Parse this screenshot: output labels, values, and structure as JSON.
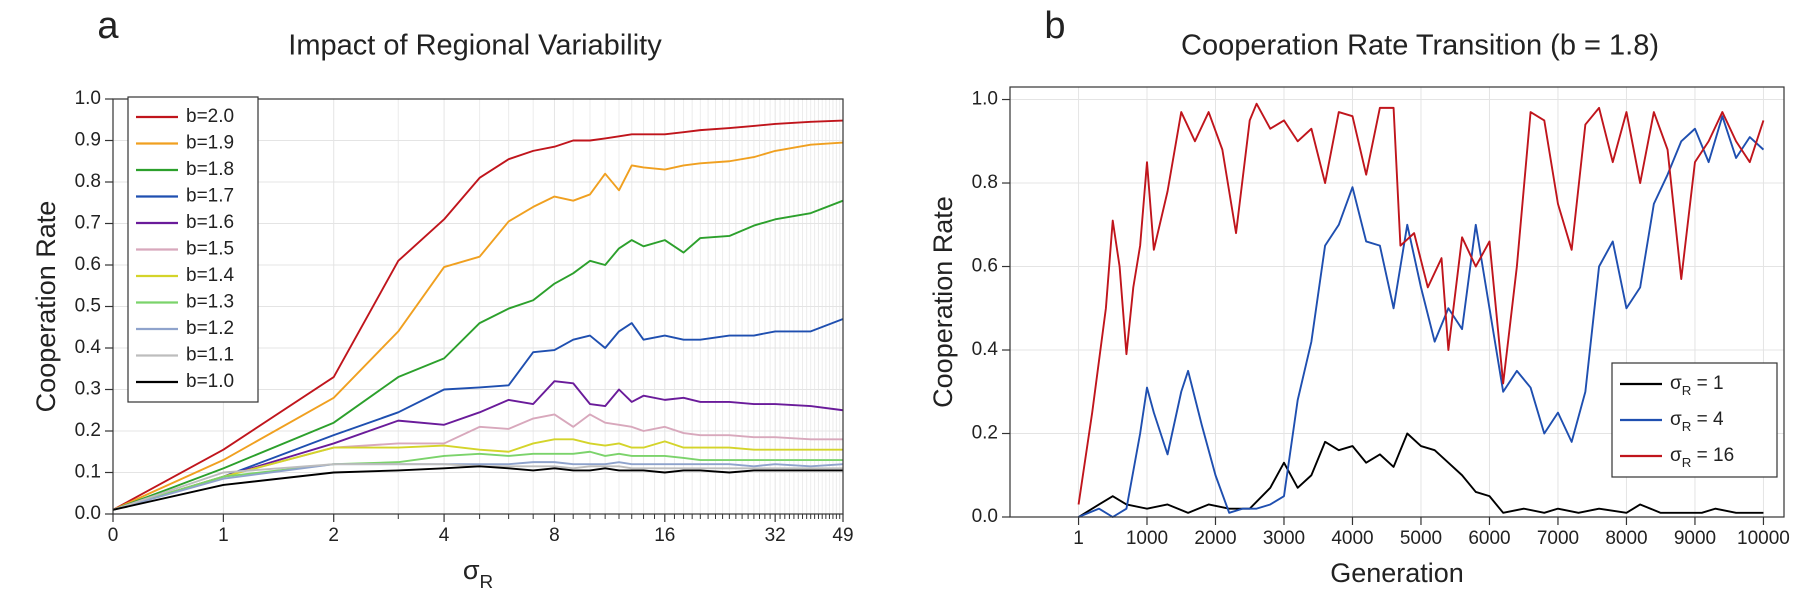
{
  "chart_data": [
    {
      "type": "line",
      "panel_label": "a",
      "title": "Impact of Regional Variability",
      "xlabel": [
        "σ",
        "R"
      ],
      "ylabel": "Cooperation Rate",
      "xscale": "log2",
      "x": [
        0,
        1,
        2,
        3,
        4,
        5,
        6,
        7,
        8,
        9,
        10,
        11,
        12,
        13,
        14,
        16,
        18,
        20,
        24,
        28,
        32,
        40,
        49
      ],
      "xlim": [
        0,
        49
      ],
      "xticks": [
        0,
        1,
        2,
        4,
        8,
        16,
        32,
        49
      ],
      "minor_xticks": [
        3,
        5,
        6,
        7,
        9,
        10,
        11,
        12,
        13,
        14,
        15,
        17,
        18,
        19,
        20,
        21,
        22,
        23,
        24,
        25,
        26,
        27,
        28,
        29,
        30,
        31,
        33,
        34,
        35,
        36,
        37,
        38,
        39,
        40,
        41,
        42,
        43,
        44,
        45,
        46,
        47,
        48
      ],
      "ylim": [
        0,
        1
      ],
      "yticks": [
        {
          "value": 0,
          "label": "0.0"
        },
        {
          "value": 0.1,
          "label": "0.1"
        },
        {
          "value": 0.2,
          "label": "0.2"
        },
        {
          "value": 0.3,
          "label": "0.3"
        },
        {
          "value": 0.4,
          "label": "0.4"
        },
        {
          "value": 0.5,
          "label": "0.5"
        },
        {
          "value": 0.6,
          "label": "0.6"
        },
        {
          "value": 0.7,
          "label": "0.7"
        },
        {
          "value": 0.8,
          "label": "0.8"
        },
        {
          "value": 0.9,
          "label": "0.9"
        },
        {
          "value": 1,
          "label": "1.0"
        }
      ],
      "grid": true,
      "legend": "upper left",
      "series": [
        {
          "name": "b=2.0",
          "color": "#c0151c",
          "values": [
            0.01,
            0.155,
            0.33,
            0.61,
            0.71,
            0.81,
            0.855,
            0.875,
            0.885,
            0.9,
            0.9,
            0.905,
            0.91,
            0.915,
            0.915,
            0.915,
            0.92,
            0.925,
            0.93,
            0.935,
            0.94,
            0.945,
            0.948
          ]
        },
        {
          "name": "b=1.9",
          "color": "#f0a020",
          "values": [
            0.01,
            0.13,
            0.28,
            0.44,
            0.595,
            0.62,
            0.705,
            0.74,
            0.765,
            0.755,
            0.77,
            0.82,
            0.78,
            0.84,
            0.835,
            0.83,
            0.84,
            0.845,
            0.85,
            0.86,
            0.875,
            0.89,
            0.895
          ]
        },
        {
          "name": "b=1.8",
          "color": "#2ca02c",
          "values": [
            0.01,
            0.11,
            0.22,
            0.33,
            0.375,
            0.46,
            0.495,
            0.515,
            0.555,
            0.58,
            0.61,
            0.6,
            0.64,
            0.66,
            0.645,
            0.66,
            0.63,
            0.665,
            0.67,
            0.695,
            0.71,
            0.725,
            0.755
          ]
        },
        {
          "name": "b=1.7",
          "color": "#1f4fb0",
          "values": [
            0.01,
            0.09,
            0.19,
            0.245,
            0.3,
            0.305,
            0.31,
            0.39,
            0.395,
            0.42,
            0.43,
            0.4,
            0.44,
            0.46,
            0.42,
            0.43,
            0.42,
            0.42,
            0.43,
            0.43,
            0.44,
            0.44,
            0.47
          ]
        },
        {
          "name": "b=1.6",
          "color": "#6a1b9a",
          "values": [
            0.01,
            0.09,
            0.17,
            0.225,
            0.215,
            0.245,
            0.275,
            0.265,
            0.32,
            0.315,
            0.265,
            0.26,
            0.3,
            0.27,
            0.285,
            0.275,
            0.28,
            0.27,
            0.27,
            0.265,
            0.265,
            0.26,
            0.25
          ]
        },
        {
          "name": "b=1.5",
          "color": "#d8a8bc",
          "values": [
            0.01,
            0.09,
            0.16,
            0.17,
            0.17,
            0.21,
            0.205,
            0.23,
            0.24,
            0.21,
            0.24,
            0.22,
            0.215,
            0.21,
            0.2,
            0.21,
            0.195,
            0.19,
            0.19,
            0.185,
            0.185,
            0.18,
            0.18
          ]
        },
        {
          "name": "b=1.4",
          "color": "#d4d42a",
          "values": [
            0.01,
            0.09,
            0.16,
            0.16,
            0.165,
            0.155,
            0.15,
            0.17,
            0.18,
            0.18,
            0.17,
            0.165,
            0.17,
            0.16,
            0.16,
            0.175,
            0.16,
            0.16,
            0.16,
            0.155,
            0.155,
            0.155,
            0.155
          ]
        },
        {
          "name": "b=1.3",
          "color": "#7bd36b",
          "values": [
            0.01,
            0.09,
            0.12,
            0.125,
            0.14,
            0.145,
            0.14,
            0.145,
            0.145,
            0.145,
            0.15,
            0.14,
            0.145,
            0.14,
            0.14,
            0.14,
            0.135,
            0.13,
            0.13,
            0.13,
            0.13,
            0.13,
            0.13
          ]
        },
        {
          "name": "b=1.2",
          "color": "#8fa3cc",
          "values": [
            0.01,
            0.085,
            0.12,
            0.12,
            0.12,
            0.12,
            0.12,
            0.125,
            0.125,
            0.12,
            0.12,
            0.12,
            0.125,
            0.12,
            0.12,
            0.12,
            0.12,
            0.12,
            0.12,
            0.115,
            0.12,
            0.115,
            0.12
          ]
        },
        {
          "name": "b=1.1",
          "color": "#bdbdbd",
          "values": [
            0.01,
            0.1,
            0.12,
            0.12,
            0.12,
            0.115,
            0.115,
            0.115,
            0.115,
            0.11,
            0.115,
            0.115,
            0.115,
            0.11,
            0.11,
            0.11,
            0.11,
            0.11,
            0.11,
            0.11,
            0.11,
            0.11,
            0.11
          ]
        },
        {
          "name": "b=1.0",
          "color": "#000000",
          "values": [
            0.01,
            0.07,
            0.1,
            0.105,
            0.11,
            0.115,
            0.11,
            0.105,
            0.11,
            0.105,
            0.105,
            0.11,
            0.105,
            0.105,
            0.105,
            0.1,
            0.105,
            0.105,
            0.1,
            0.105,
            0.105,
            0.105,
            0.105
          ]
        }
      ]
    },
    {
      "type": "line",
      "panel_label": "b",
      "title": "Cooperation Rate Transition (b = 1.8)",
      "xlabel": [
        "Generation"
      ],
      "ylabel": "Cooperation Rate",
      "xlim": [
        -1000,
        10300
      ],
      "xticks": [
        1,
        1000,
        2000,
        3000,
        4000,
        5000,
        6000,
        7000,
        8000,
        9000,
        10000
      ],
      "ylim": [
        0,
        1.03
      ],
      "yticks": [
        {
          "value": 0,
          "label": "0.0"
        },
        {
          "value": 0.2,
          "label": "0.2"
        },
        {
          "value": 0.4,
          "label": "0.4"
        },
        {
          "value": 0.6,
          "label": "0.6"
        },
        {
          "value": 0.8,
          "label": "0.8"
        },
        {
          "value": 1,
          "label": "1.0"
        }
      ],
      "grid": true,
      "legend": "lower right",
      "series": [
        {
          "name": [
            "σ",
            "R",
            " = 1"
          ],
          "color": "#000000",
          "x": [
            1,
            300,
            500,
            700,
            1000,
            1300,
            1600,
            1900,
            2200,
            2500,
            2800,
            3000,
            3200,
            3400,
            3600,
            3800,
            4000,
            4200,
            4400,
            4600,
            4800,
            5000,
            5200,
            5400,
            5600,
            5800,
            6000,
            6200,
            6500,
            6800,
            7000,
            7300,
            7600,
            8000,
            8200,
            8500,
            8800,
            9100,
            9300,
            9600,
            10000
          ],
          "values": [
            0,
            0.03,
            0.05,
            0.03,
            0.02,
            0.03,
            0.01,
            0.03,
            0.02,
            0.02,
            0.07,
            0.13,
            0.07,
            0.1,
            0.18,
            0.16,
            0.17,
            0.13,
            0.15,
            0.12,
            0.2,
            0.17,
            0.16,
            0.13,
            0.1,
            0.06,
            0.05,
            0.01,
            0.02,
            0.01,
            0.02,
            0.01,
            0.02,
            0.01,
            0.03,
            0.01,
            0.01,
            0.01,
            0.02,
            0.01,
            0.01
          ]
        },
        {
          "name": [
            "σ",
            "R",
            " = 4"
          ],
          "color": "#1f4fb0",
          "x": [
            1,
            300,
            500,
            700,
            900,
            1000,
            1100,
            1300,
            1500,
            1600,
            1800,
            2000,
            2200,
            2400,
            2600,
            2800,
            3000,
            3200,
            3400,
            3600,
            3800,
            4000,
            4200,
            4400,
            4600,
            4800,
            5000,
            5200,
            5400,
            5600,
            5800,
            6000,
            6200,
            6400,
            6600,
            6800,
            7000,
            7200,
            7400,
            7600,
            7800,
            8000,
            8200,
            8400,
            8600,
            8800,
            9000,
            9200,
            9400,
            9600,
            9800,
            10000
          ],
          "values": [
            0,
            0.02,
            0,
            0.02,
            0.2,
            0.31,
            0.25,
            0.15,
            0.3,
            0.35,
            0.22,
            0.1,
            0.01,
            0.02,
            0.02,
            0.03,
            0.05,
            0.28,
            0.42,
            0.65,
            0.7,
            0.79,
            0.66,
            0.65,
            0.5,
            0.7,
            0.55,
            0.42,
            0.5,
            0.45,
            0.7,
            0.5,
            0.3,
            0.35,
            0.31,
            0.2,
            0.25,
            0.18,
            0.3,
            0.6,
            0.66,
            0.5,
            0.55,
            0.75,
            0.82,
            0.9,
            0.93,
            0.85,
            0.96,
            0.86,
            0.91,
            0.88
          ]
        },
        {
          "name": [
            "σ",
            "R",
            " = 16"
          ],
          "color": "#c0151c",
          "x": [
            1,
            200,
            400,
            500,
            600,
            700,
            800,
            900,
            1000,
            1100,
            1300,
            1500,
            1700,
            1900,
            2100,
            2300,
            2500,
            2600,
            2800,
            3000,
            3200,
            3400,
            3600,
            3800,
            4000,
            4200,
            4400,
            4600,
            4700,
            4900,
            5100,
            5300,
            5400,
            5600,
            5800,
            6000,
            6200,
            6400,
            6600,
            6800,
            7000,
            7200,
            7400,
            7600,
            7800,
            8000,
            8200,
            8400,
            8600,
            8800,
            9000,
            9200,
            9400,
            9600,
            9800,
            10000
          ],
          "values": [
            0.03,
            0.25,
            0.5,
            0.71,
            0.6,
            0.39,
            0.55,
            0.65,
            0.85,
            0.64,
            0.78,
            0.97,
            0.9,
            0.97,
            0.88,
            0.68,
            0.95,
            0.99,
            0.93,
            0.95,
            0.9,
            0.93,
            0.8,
            0.97,
            0.96,
            0.82,
            0.98,
            0.98,
            0.65,
            0.68,
            0.55,
            0.62,
            0.4,
            0.67,
            0.6,
            0.66,
            0.32,
            0.6,
            0.97,
            0.95,
            0.75,
            0.64,
            0.94,
            0.98,
            0.85,
            0.97,
            0.8,
            0.97,
            0.88,
            0.57,
            0.85,
            0.9,
            0.97,
            0.9,
            0.85,
            0.95
          ]
        }
      ]
    }
  ]
}
